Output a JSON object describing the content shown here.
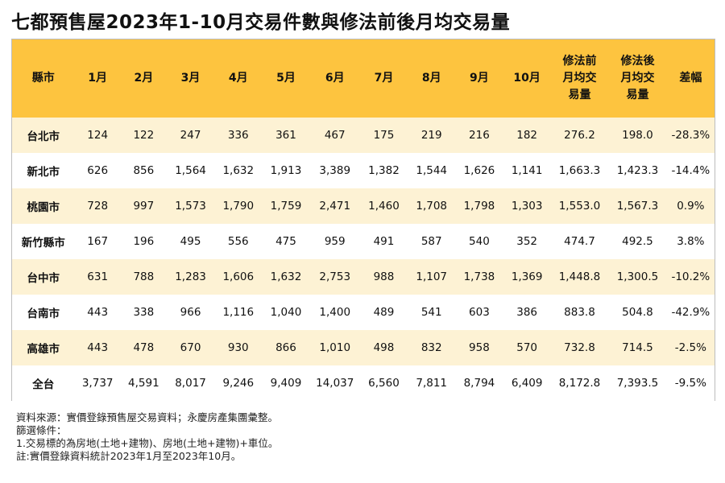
{
  "title": "七都預售屋2023年1-10月交易件數與修法前後月均交易量",
  "table": {
    "headers": {
      "county": "縣市",
      "months": [
        "1月",
        "2月",
        "3月",
        "4月",
        "5月",
        "6月",
        "7月",
        "8月",
        "9月",
        "10月"
      ],
      "before": [
        "修法前",
        "月均交",
        "易量"
      ],
      "after": [
        "修法後",
        "月均交",
        "易量"
      ],
      "change": "差幅"
    },
    "rows": [
      {
        "county": "台北市",
        "values": [
          "124",
          "122",
          "247",
          "336",
          "361",
          "467",
          "175",
          "219",
          "216",
          "182"
        ],
        "before": "276.2",
        "after": "198.0",
        "change": "-28.3%"
      },
      {
        "county": "新北市",
        "values": [
          "626",
          "856",
          "1,564",
          "1,632",
          "1,913",
          "3,389",
          "1,382",
          "1,544",
          "1,626",
          "1,141"
        ],
        "before": "1,663.3",
        "after": "1,423.3",
        "change": "-14.4%"
      },
      {
        "county": "桃園市",
        "values": [
          "728",
          "997",
          "1,573",
          "1,790",
          "1,759",
          "2,471",
          "1,460",
          "1,708",
          "1,798",
          "1,303"
        ],
        "before": "1,553.0",
        "after": "1,567.3",
        "change": "0.9%"
      },
      {
        "county": "新竹縣市",
        "values": [
          "167",
          "196",
          "495",
          "556",
          "475",
          "959",
          "491",
          "587",
          "540",
          "352"
        ],
        "before": "474.7",
        "after": "492.5",
        "change": "3.8%"
      },
      {
        "county": "台中市",
        "values": [
          "631",
          "788",
          "1,283",
          "1,606",
          "1,632",
          "2,753",
          "988",
          "1,107",
          "1,738",
          "1,369"
        ],
        "before": "1,448.8",
        "after": "1,300.5",
        "change": "-10.2%"
      },
      {
        "county": "台南市",
        "values": [
          "443",
          "338",
          "966",
          "1,116",
          "1,040",
          "1,400",
          "489",
          "541",
          "603",
          "386"
        ],
        "before": "883.8",
        "after": "504.8",
        "change": "-42.9%"
      },
      {
        "county": "高雄市",
        "values": [
          "443",
          "478",
          "670",
          "930",
          "866",
          "1,010",
          "498",
          "832",
          "958",
          "570"
        ],
        "before": "732.8",
        "after": "714.5",
        "change": "-2.5%"
      },
      {
        "county": "全台",
        "values": [
          "3,737",
          "4,591",
          "8,017",
          "9,246",
          "9,409",
          "14,037",
          "6,560",
          "7,811",
          "8,794",
          "6,409"
        ],
        "before": "8,172.8",
        "after": "7,393.5",
        "change": "-9.5%"
      }
    ]
  },
  "notes": [
    "資料來源：實價登錄預售屋交易資料；永慶房產集團彙整。",
    "篩選條件：",
    "1.交易標的為房地(土地+建物)、房地(土地+建物)+車位。",
    "註:實價登錄資料統計2023年1月至2023年10月。"
  ],
  "colors": {
    "header": "#fdc43f",
    "stripe": "#fdf2d4"
  }
}
